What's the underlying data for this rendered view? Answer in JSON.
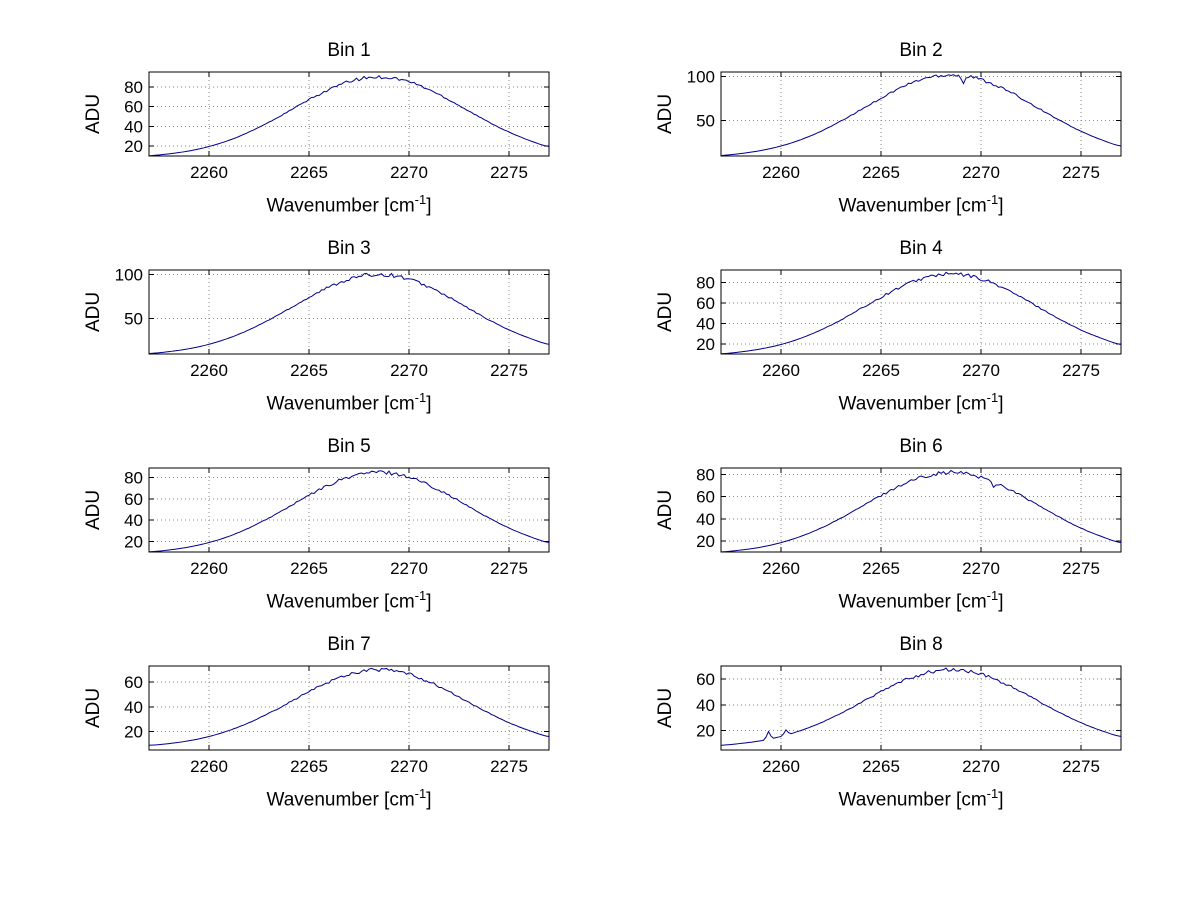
{
  "figure": {
    "background": "#ffffff",
    "text_color": "#000000"
  },
  "chart_data": {
    "type": "line",
    "layout": "4x2-grid-of-subplots",
    "xlabel": "Wavenumber [cm-1]",
    "xlabel_parts": {
      "prefix": "Wavenumber [cm",
      "sup": "-1",
      "suffix": "]"
    },
    "ylabel": "ADU",
    "xlim": [
      2257,
      2277
    ],
    "xticks": [
      2260,
      2265,
      2270,
      2275
    ],
    "grid": true,
    "line_color": "#00008b",
    "x": [
      2257,
      2258,
      2259,
      2260,
      2261,
      2262,
      2263,
      2264,
      2265,
      2266,
      2267,
      2268,
      2269,
      2270,
      2271,
      2272,
      2273,
      2274,
      2275,
      2276,
      2277
    ],
    "charts": [
      {
        "title": "Bin 1",
        "ylim": [
          10,
          95
        ],
        "yticks": [
          20,
          40,
          60,
          80
        ],
        "noise": 1.8,
        "spikes": [],
        "values": [
          10.3,
          12.2,
          15.1,
          19.6,
          25.9,
          34.2,
          44.2,
          55.4,
          66.9,
          77.2,
          85.2,
          89.4,
          89.4,
          85.2,
          77.2,
          66.9,
          55.4,
          44.2,
          34.2,
          25.9,
          19.6
        ]
      },
      {
        "title": "Bin 2",
        "ylim": [
          10,
          105
        ],
        "yticks": [
          50,
          100
        ],
        "noise": 2.2,
        "spikes": [
          {
            "x": 2269.1,
            "dy": -9
          }
        ],
        "values": [
          10.6,
          12.8,
          16.2,
          21.3,
          28.5,
          38.0,
          49.5,
          62.4,
          75.5,
          87.4,
          96.5,
          101.4,
          101.4,
          96.5,
          87.4,
          75.5,
          62.4,
          49.5,
          38.0,
          28.5,
          21.3
        ]
      },
      {
        "title": "Bin 3",
        "ylim": [
          10,
          105
        ],
        "yticks": [
          50,
          100
        ],
        "noise": 2.2,
        "spikes": [],
        "values": [
          10.6,
          12.7,
          16.0,
          21.0,
          28.1,
          37.3,
          48.6,
          61.2,
          74.1,
          85.7,
          94.6,
          99.4,
          99.4,
          94.6,
          85.7,
          74.1,
          61.2,
          48.6,
          37.3,
          28.1,
          21.0
        ]
      },
      {
        "title": "Bin 4",
        "ylim": [
          10,
          92
        ],
        "yticks": [
          20,
          40,
          60,
          80
        ],
        "noise": 1.9,
        "spikes": [],
        "values": [
          10.2,
          12.1,
          15.0,
          19.3,
          25.5,
          33.5,
          43.3,
          54.3,
          65.4,
          75.6,
          83.3,
          87.5,
          87.5,
          83.3,
          75.6,
          65.4,
          54.3,
          43.3,
          33.5,
          25.5,
          19.3
        ]
      },
      {
        "title": "Bin 5",
        "ylim": [
          10,
          89
        ],
        "yticks": [
          20,
          40,
          60,
          80
        ],
        "noise": 1.9,
        "spikes": [],
        "values": [
          10.2,
          11.9,
          14.7,
          18.9,
          24.8,
          32.6,
          42.0,
          52.5,
          63.3,
          73.0,
          80.5,
          84.5,
          84.5,
          80.5,
          73.0,
          63.3,
          52.5,
          42.0,
          32.6,
          24.8,
          18.9
        ]
      },
      {
        "title": "Bin 6",
        "ylim": [
          10,
          86
        ],
        "yticks": [
          20,
          40,
          60,
          80
        ],
        "noise": 1.8,
        "spikes": [
          {
            "x": 2270.6,
            "dy": -4
          }
        ],
        "values": [
          10.1,
          11.8,
          14.4,
          18.5,
          24.2,
          31.6,
          40.7,
          50.8,
          61.1,
          70.5,
          77.6,
          81.5,
          81.5,
          77.6,
          70.5,
          61.1,
          50.8,
          40.7,
          31.6,
          24.2,
          18.5
        ]
      },
      {
        "title": "Bin 7",
        "ylim": [
          5,
          73
        ],
        "yticks": [
          20,
          40,
          60
        ],
        "noise": 1.6,
        "spikes": [],
        "values": [
          8.8,
          10.2,
          12.5,
          15.9,
          20.8,
          27.1,
          34.8,
          43.4,
          52.2,
          60.2,
          66.3,
          69.6,
          69.6,
          66.3,
          60.2,
          52.2,
          43.4,
          34.8,
          27.1,
          20.8,
          15.9
        ]
      },
      {
        "title": "Bin 8",
        "ylim": [
          5,
          70
        ],
        "yticks": [
          20,
          40,
          60
        ],
        "noise": 1.6,
        "spikes": [
          {
            "x": 2259.4,
            "dy": 6
          },
          {
            "x": 2260.2,
            "dy": 4
          }
        ],
        "values": [
          8.7,
          10.1,
          12.2,
          15.5,
          20.1,
          26.1,
          33.5,
          41.7,
          50.1,
          57.7,
          63.5,
          66.6,
          66.6,
          63.5,
          57.7,
          50.1,
          41.7,
          33.5,
          26.1,
          20.1,
          15.5
        ]
      }
    ]
  }
}
